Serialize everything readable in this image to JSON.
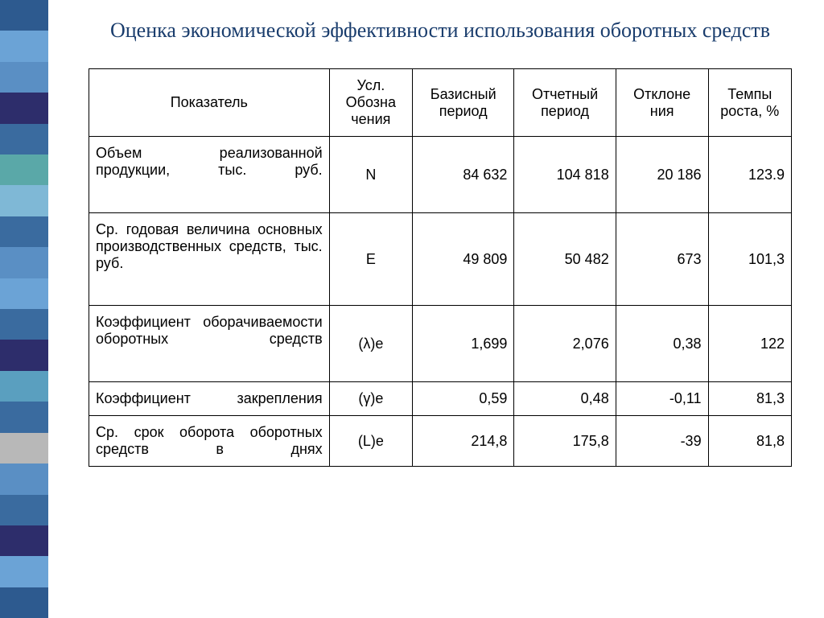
{
  "title": "Оценка экономической эффективности использования оборотных средств",
  "sidebar_colors": [
    "#2d5a8f",
    "#6ba3d6",
    "#5a8fc4",
    "#2d2d6b",
    "#3a6b9f",
    "#5aa8a8",
    "#7fb8d6",
    "#3a6b9f",
    "#5a8fc4",
    "#6ba3d6",
    "#3a6b9f",
    "#2d2d6b",
    "#5a9fbf",
    "#3a6b9f",
    "#b8b8b8",
    "#5a8fc4",
    "#3a6b9f",
    "#2d2d6b",
    "#6ba3d6",
    "#2d5a8f"
  ],
  "columns": [
    "Показатель",
    "Усл. Обозна чения",
    "Базисный период",
    "Отчетный период",
    "Отклоне ния",
    "Темпы роста, %"
  ],
  "rows": [
    {
      "label": "Объем реализованной продукции, тыс. руб.",
      "symbol": "N",
      "base": "84 632",
      "report": "104 818",
      "dev": "20 186",
      "rate": "123.9"
    },
    {
      "label": "Ср. годовая величина основных производственных средств, тыс. руб.",
      "symbol": "Е",
      "base": "49 809",
      "report": "50 482",
      "dev": "673",
      "rate": "101,3"
    },
    {
      "label": "Коэффициент оборачиваемости оборотных средств",
      "symbol": "(λ)е",
      "base": "1,699",
      "report": "2,076",
      "dev": "0,38",
      "rate": "122"
    },
    {
      "label": "Коэффициент закрепления",
      "symbol": "(γ)е",
      "base": "0,59",
      "report": "0,48",
      "dev": "-0,11",
      "rate": "81,3"
    },
    {
      "label": "Ср. срок оборота оборотных средств в днях",
      "symbol": "(L)е",
      "base": "214,8",
      "report": "175,8",
      "dev": "-39",
      "rate": "81,8"
    }
  ]
}
